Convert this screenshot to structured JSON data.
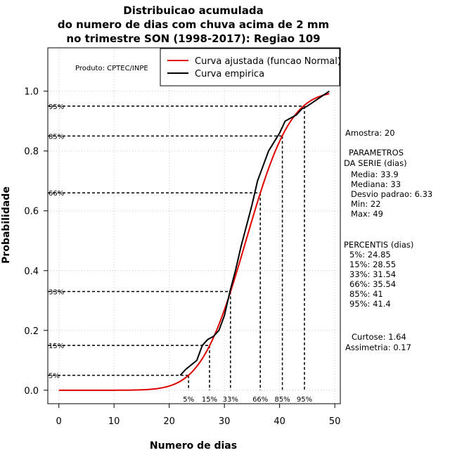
{
  "chart_data": {
    "type": "line",
    "title": [
      "Distribuicao acumulada",
      "do numero de dias com chuva acima de 2 mm",
      "no trimestre SON (1998-2017): Regiao 109"
    ],
    "xlabel": "Numero de dias",
    "ylabel": "Probabilidade",
    "xlim": [
      -2,
      51
    ],
    "ylim": [
      -0.045,
      1.145
    ],
    "x_ticks": [
      0,
      10,
      20,
      30,
      40,
      50
    ],
    "x_tick_labels": [
      "0",
      "10",
      "20",
      "30",
      "40",
      "50"
    ],
    "y_ticks": [
      0.0,
      0.2,
      0.4,
      0.6,
      0.8,
      1.0
    ],
    "y_tick_labels": [
      "0.0",
      "0.2",
      "0.4",
      "0.6",
      "0.8",
      "1.0"
    ],
    "grid": true,
    "producer": "Produto: CPTEC/INPE",
    "legend": {
      "position": "top-right",
      "entries": [
        {
          "label": "Curva ajustada (funcao Normal)",
          "color": "#e00000"
        },
        {
          "label": "Curva empirica",
          "color": "#000000"
        }
      ]
    },
    "fitted_curve": {
      "name": "Curva ajustada (funcao Normal)",
      "color": "#e00000",
      "distribution": "normal",
      "mean": 33.9,
      "sd": 6.33,
      "x_range": [
        0,
        49
      ]
    },
    "empirical_curve": {
      "name": "Curva empirica",
      "color": "#000000",
      "x": [
        22,
        23,
        25,
        26,
        27,
        28,
        29,
        30,
        31,
        32,
        33,
        34,
        35,
        36,
        37,
        38,
        39,
        40,
        41,
        42,
        43,
        44,
        45,
        49
      ],
      "y": [
        0.05,
        0.07,
        0.1,
        0.15,
        0.17,
        0.18,
        0.2,
        0.25,
        0.33,
        0.4,
        0.48,
        0.55,
        0.62,
        0.7,
        0.75,
        0.8,
        0.83,
        0.86,
        0.9,
        0.91,
        0.92,
        0.94,
        0.95,
        1.0
      ]
    },
    "percentile_markers": [
      {
        "label": "5%",
        "prob": 0.05,
        "x": 23.5
      },
      {
        "label": "15%",
        "prob": 0.15,
        "x": 27.3
      },
      {
        "label": "33%",
        "prob": 0.33,
        "x": 31.1
      },
      {
        "label": "66%",
        "prob": 0.66,
        "x": 36.5
      },
      {
        "label": "85%",
        "prob": 0.85,
        "x": 40.5
      },
      {
        "label": "95%",
        "prob": 0.95,
        "x": 44.5
      }
    ]
  },
  "side_panel": {
    "sample": "Amostra: 20",
    "params_title": "PARAMETROS",
    "params_subtitle": "DA SERIE (dias)",
    "params": [
      "Media: 33.9",
      "Mediana: 33",
      "Desvio padrao: 6.33",
      "Min: 22",
      "Max: 49"
    ],
    "percentis_title": "PERCENTIS (dias)",
    "percentis": [
      "5%: 24.85",
      "15%: 28.55",
      "33%: 31.54",
      "66%: 35.54",
      "85%: 41",
      "95%: 41.4"
    ],
    "curtose": "Curtose: 1.64",
    "assimetria": "Assimetria: 0.17"
  }
}
